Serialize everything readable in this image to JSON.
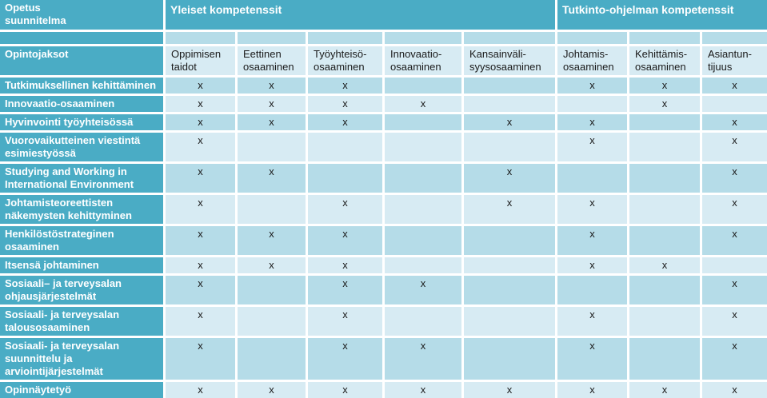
{
  "colors": {
    "teal": "#4aacc5",
    "band_dark": "#b5dce8",
    "band_light": "#d7ebf3",
    "text_dark": "#1a1a1a",
    "text_light": "#ffffff",
    "gap": "#ffffff"
  },
  "table": {
    "corner_title": "Opetus\nsuunnitelma",
    "group_headers": [
      "Yleiset kompetenssit",
      "Tutkinto-ohjelman kompetenssit"
    ],
    "row_header": "Opintojaksot",
    "mark_symbol": "x",
    "columns": [
      "Oppimisen taidot",
      "Eettinen osaaminen",
      "Työyhteisö-osaaminen",
      "Innovaatio-osaaminen",
      "Kansainväli-syysosaaminen",
      "Johtamis-osaaminen",
      "Kehittämis-osaaminen",
      "Asiantun-tijuus"
    ],
    "rows": [
      {
        "label": "Tutkimuksellinen kehittäminen",
        "marks": [
          1,
          1,
          1,
          0,
          0,
          1,
          1,
          1
        ]
      },
      {
        "label": "Innovaatio-osaaminen",
        "marks": [
          1,
          1,
          1,
          1,
          0,
          0,
          1,
          0
        ]
      },
      {
        "label": "Hyvinvointi työyhteisössä",
        "marks": [
          1,
          1,
          1,
          0,
          1,
          1,
          0,
          1
        ]
      },
      {
        "label": "Vuorovaikutteinen viestintä esimiestyössä",
        "marks": [
          1,
          0,
          0,
          0,
          0,
          1,
          0,
          1
        ]
      },
      {
        "label": "Studying and Working in International Environment",
        "marks": [
          1,
          1,
          0,
          0,
          1,
          0,
          0,
          1
        ]
      },
      {
        "label": "Johtamisteoreettisten näkemysten kehittyminen",
        "marks": [
          1,
          0,
          1,
          0,
          1,
          1,
          0,
          1
        ]
      },
      {
        "label": "Henkilöstöstrateginen osaaminen",
        "marks": [
          1,
          1,
          1,
          0,
          0,
          1,
          0,
          1
        ]
      },
      {
        "label": "Itsensä johtaminen",
        "marks": [
          1,
          1,
          1,
          0,
          0,
          1,
          1,
          0
        ]
      },
      {
        "label": "Sosiaali– ja terveysalan ohjausjärjestelmät",
        "marks": [
          1,
          0,
          1,
          1,
          0,
          0,
          0,
          1
        ]
      },
      {
        "label": "Sosiaali- ja terveysalan talousosaaminen",
        "marks": [
          1,
          0,
          1,
          0,
          0,
          1,
          0,
          1
        ]
      },
      {
        "label": "Sosiaali- ja terveysalan suunnittelu ja arviointijärjestelmät",
        "marks": [
          1,
          0,
          1,
          1,
          0,
          1,
          0,
          1
        ]
      },
      {
        "label": "Opinnäytetyö",
        "marks": [
          1,
          1,
          1,
          1,
          1,
          1,
          1,
          1
        ]
      }
    ]
  }
}
